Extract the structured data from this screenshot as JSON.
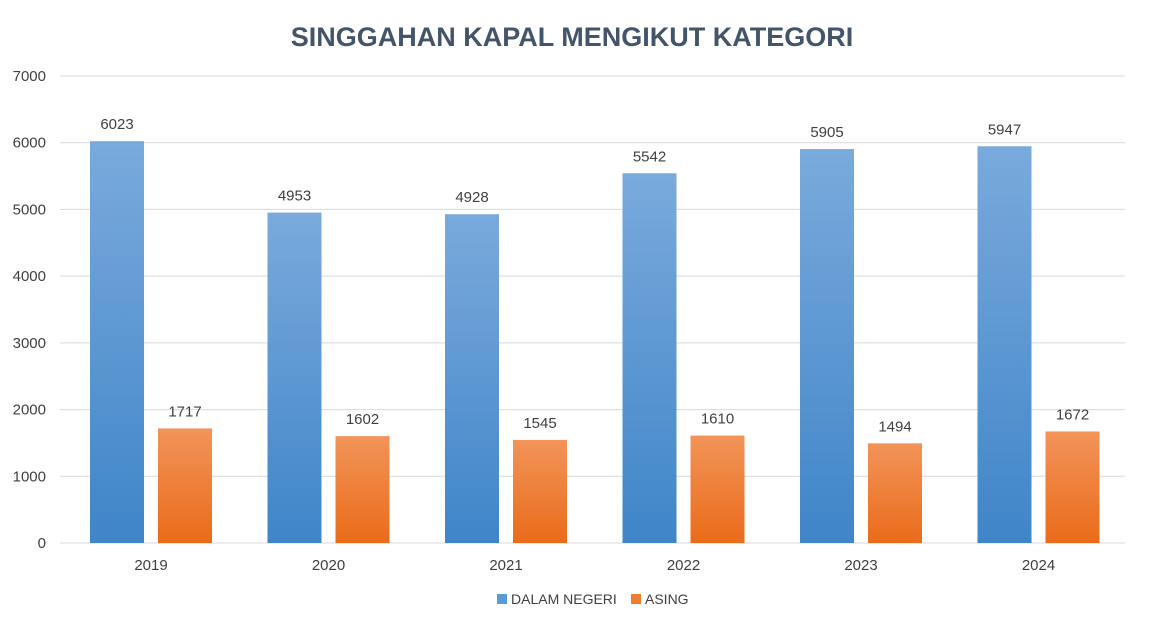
{
  "chart_data": {
    "type": "bar",
    "title": "SINGGAHAN KAPAL MENGIKUT KATEGORI",
    "xlabel": "",
    "ylabel": "",
    "categories": [
      "2019",
      "2020",
      "2021",
      "2022",
      "2023",
      "2024"
    ],
    "series": [
      {
        "name": "DALAM NEGERI",
        "color": "#5b9bd5",
        "color_top": "#7aaadc",
        "color_bottom": "#3f85c8",
        "values": [
          6023,
          4953,
          4928,
          5542,
          5905,
          5947
        ],
        "labels": [
          "6023",
          "4953",
          "4928",
          "5542",
          "5905",
          "5947"
        ]
      },
      {
        "name": "ASING",
        "color": "#ed7d31",
        "color_top": "#f29459",
        "color_bottom": "#ea6b1a",
        "values": [
          1717,
          1602,
          1545,
          1610,
          1494,
          1672
        ],
        "labels": [
          "1717",
          "1602",
          "1545",
          "1610",
          "1494",
          "1672"
        ]
      }
    ],
    "ylim": [
      0,
      7000
    ],
    "yticks": [
      "0",
      "1000",
      "2000",
      "3000",
      "4000",
      "5000",
      "6000",
      "7000"
    ],
    "grid": true,
    "legend_position": "bottom"
  }
}
